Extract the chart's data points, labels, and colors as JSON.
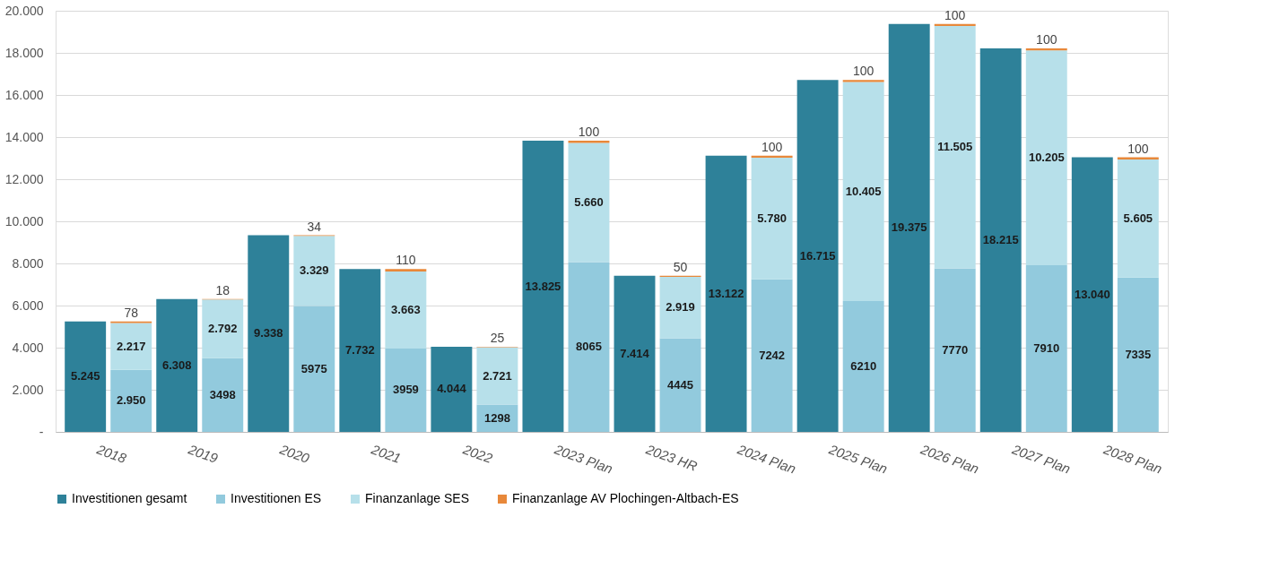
{
  "chart_data": {
    "type": "bar",
    "stacked": true,
    "categories": [
      "2018",
      null,
      "2019",
      null,
      "2020",
      null,
      "2021",
      null,
      "2022",
      null,
      "2023 Plan",
      null,
      "2023 HR",
      null,
      "2024 Plan",
      null,
      "2025 Plan",
      null,
      "2026 Plan",
      null,
      "2027 Plan",
      null,
      "2028 Plan",
      null
    ],
    "series": [
      {
        "name": "Investitionen gesamt",
        "color": "#2e8199",
        "values": [
          5245,
          null,
          6308,
          null,
          9338,
          null,
          7732,
          null,
          4044,
          null,
          13825,
          null,
          7414,
          null,
          13122,
          null,
          16715,
          null,
          19375,
          null,
          18215,
          null,
          13040,
          null
        ],
        "value_labels": [
          "5.245",
          null,
          "6.308",
          null,
          "9.338",
          null,
          "7.732",
          null,
          "4.044",
          null,
          "13.825",
          null,
          "7.414",
          null,
          "13.122",
          null,
          "16.715",
          null,
          "19.375",
          null,
          "18.215",
          null,
          "13.040",
          null
        ]
      },
      {
        "name": "Investitionen ES",
        "color": "#92cadd",
        "values": [
          null,
          2950,
          null,
          3498,
          null,
          5975,
          null,
          3959,
          null,
          1298,
          null,
          8065,
          null,
          4445,
          null,
          7242,
          null,
          6210,
          null,
          7770,
          null,
          7910,
          null,
          7335
        ],
        "value_labels": [
          null,
          "2.950",
          null,
          "3498",
          null,
          "5975",
          null,
          "3959",
          null,
          "1298",
          null,
          "8065",
          null,
          "4445",
          null,
          "7242",
          null,
          "6210",
          null,
          "7770",
          null,
          "7910",
          null,
          "7335"
        ]
      },
      {
        "name": "Finanzanlage SES",
        "color": "#b7e0ea",
        "values": [
          null,
          2217,
          null,
          2792,
          null,
          3329,
          null,
          3663,
          null,
          2721,
          null,
          5660,
          null,
          2919,
          null,
          5780,
          null,
          10405,
          null,
          11505,
          null,
          10205,
          null,
          5605
        ],
        "value_labels": [
          null,
          "2.217",
          null,
          "2.792",
          null,
          "3.329",
          null,
          "3.663",
          null,
          "2.721",
          null,
          "5.660",
          null,
          "2.919",
          null,
          "5.780",
          null,
          "10.405",
          null,
          "11.505",
          null,
          "10.205",
          null,
          "5.605"
        ]
      },
      {
        "name": "Finanzanlage AV Plochingen-Altbach-ES",
        "color": "#e8883a",
        "values": [
          null,
          78,
          null,
          18,
          null,
          34,
          null,
          110,
          null,
          25,
          null,
          100,
          null,
          50,
          null,
          100,
          null,
          100,
          null,
          100,
          null,
          100,
          null,
          100
        ],
        "value_labels": [
          null,
          "78",
          null,
          "18",
          null,
          "34",
          null,
          "110",
          null,
          "25",
          null,
          "100",
          null,
          "50",
          null,
          "100",
          null,
          "100",
          null,
          "100",
          null,
          "100",
          null,
          "100"
        ]
      }
    ],
    "ylim": [
      0,
      20000
    ],
    "yticks": [
      {
        "value": 0,
        "label": "-"
      },
      {
        "value": 2000,
        "label": "2.000"
      },
      {
        "value": 4000,
        "label": "4.000"
      },
      {
        "value": 6000,
        "label": "6.000"
      },
      {
        "value": 8000,
        "label": "8.000"
      },
      {
        "value": 10000,
        "label": "10.000"
      },
      {
        "value": 12000,
        "label": "12.000"
      },
      {
        "value": 14000,
        "label": "14.000"
      },
      {
        "value": 16000,
        "label": "16.000"
      },
      {
        "value": 18000,
        "label": "18.000"
      },
      {
        "value": 20000,
        "label": "20.000"
      }
    ],
    "grid": "y",
    "legend": "bottom"
  }
}
